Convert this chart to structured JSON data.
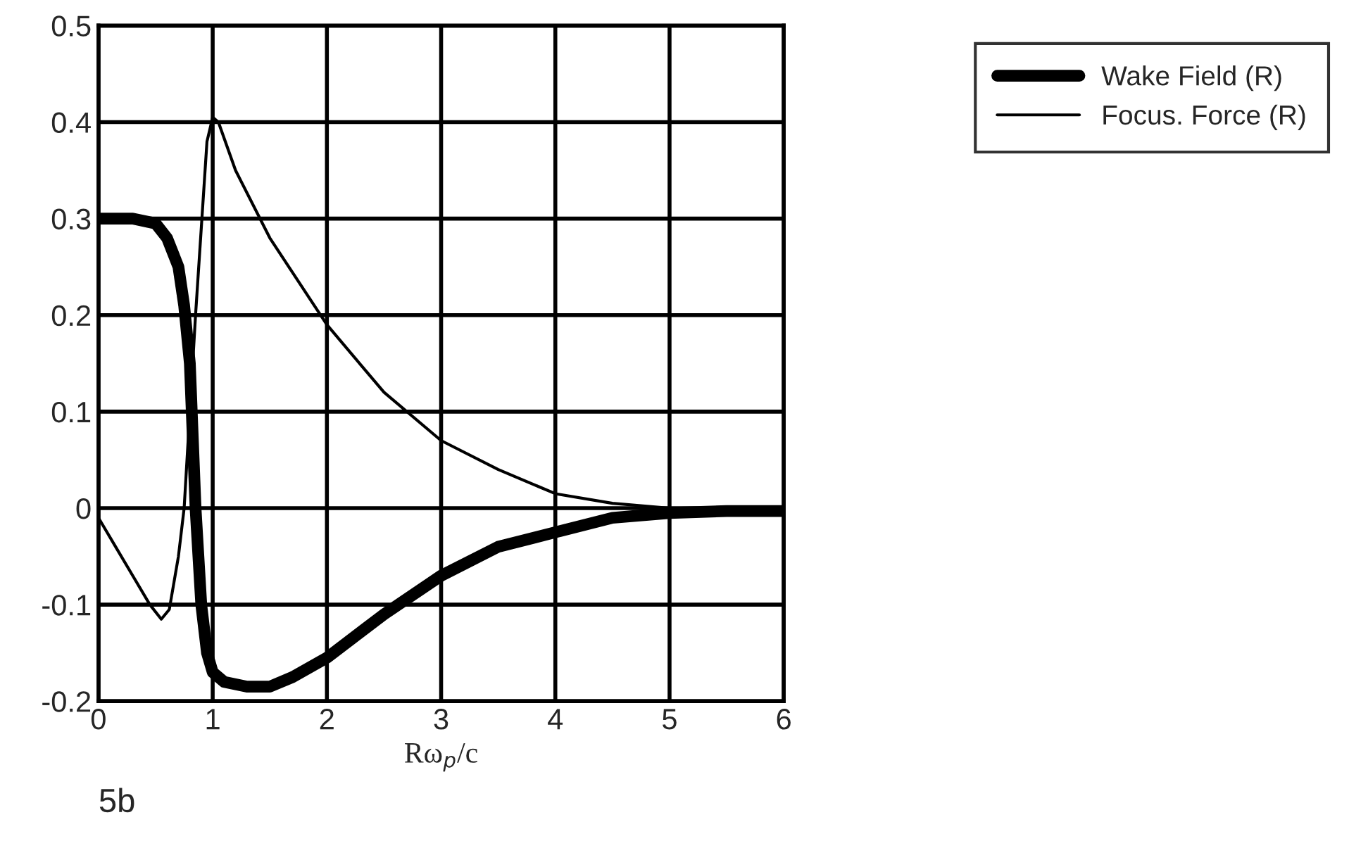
{
  "chart_data": {
    "type": "line",
    "xlabel": "Rω$_{p}$/c",
    "annotations": [
      "5b"
    ],
    "xlim": [
      0,
      6
    ],
    "xticks": [
      0,
      1,
      2,
      3,
      4,
      5,
      6
    ],
    "ylim": [
      -0.2,
      0.5
    ],
    "yticks": [
      -0.2,
      -0.1,
      0,
      0.1,
      0.2,
      0.3,
      0.4,
      0.5
    ],
    "grid": true,
    "legend": "top right",
    "marker": "none",
    "line_style": "solid",
    "series": [
      {
        "name": "Wake Field (R)",
        "color": "#000000",
        "x": [
          0,
          0.3,
          0.5,
          0.6,
          0.7,
          0.75,
          0.8,
          0.85,
          0.9,
          0.95,
          1.0,
          1.1,
          1.3,
          1.5,
          1.7,
          2.0,
          2.5,
          3.0,
          3.5,
          4.0,
          4.5,
          5.0,
          5.5,
          6.0
        ],
        "values": [
          0.3,
          0.3,
          0.295,
          0.28,
          0.25,
          0.21,
          0.15,
          0.0,
          -0.1,
          -0.15,
          -0.17,
          -0.18,
          -0.185,
          -0.185,
          -0.175,
          -0.155,
          -0.11,
          -0.07,
          -0.04,
          -0.025,
          -0.01,
          -0.005,
          -0.003,
          -0.003
        ]
      },
      {
        "name": "Focus. Force (R)",
        "color": "#000000",
        "x": [
          0,
          0.15,
          0.3,
          0.45,
          0.55,
          0.62,
          0.7,
          0.75,
          0.85,
          0.95,
          1.0,
          1.05,
          1.2,
          1.5,
          2.0,
          2.5,
          3.0,
          3.5,
          4.0,
          4.5,
          5.0,
          5.5,
          6.0
        ],
        "values": [
          -0.01,
          -0.04,
          -0.07,
          -0.1,
          -0.115,
          -0.105,
          -0.05,
          0.0,
          0.2,
          0.38,
          0.405,
          0.4,
          0.35,
          0.28,
          0.19,
          0.12,
          0.07,
          0.04,
          0.015,
          0.005,
          0.0,
          -0.005,
          -0.005
        ]
      }
    ]
  }
}
